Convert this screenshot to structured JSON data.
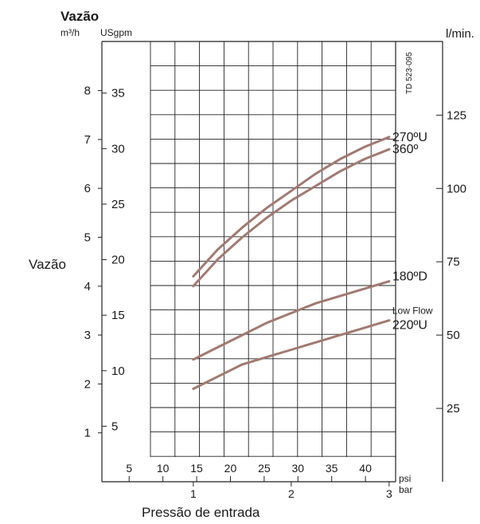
{
  "chart_data": {
    "type": "line",
    "title": "Vazão",
    "ylabel": "Vazão",
    "xlabel": "Pressão de entrada",
    "code": "TD 523-095",
    "grid": true,
    "x_unit_bar": "bar",
    "x_unit_psi": "psi",
    "y_unit_m3h": "m³/h",
    "y_unit_usgpm": "USgpm",
    "y_unit_lmin": "l/min.",
    "xlim": [
      0.0,
      3.05
    ],
    "ylim": [
      0.0,
      9.0
    ],
    "bar_ticks": [
      "1",
      "2",
      "3"
    ],
    "psi_ticks": [
      "5",
      "10",
      "15",
      "20",
      "25",
      "30",
      "35",
      "40"
    ],
    "m3h_ticks": [
      "1",
      "2",
      "3",
      "4",
      "5",
      "6",
      "7",
      "8"
    ],
    "usgpm_ticks": [
      "5",
      "10",
      "15",
      "20",
      "25",
      "30",
      "35"
    ],
    "lmin_ticks": [
      "25",
      "50",
      "75",
      "100",
      "125"
    ],
    "series_color": "#a07a72",
    "series": [
      {
        "name": "270ºU",
        "x": [
          1.0,
          1.25,
          1.5,
          1.75,
          2.0,
          2.25,
          2.5,
          2.75,
          3.0
        ],
        "y": [
          4.2,
          4.75,
          5.2,
          5.6,
          5.95,
          6.3,
          6.6,
          6.85,
          7.05
        ]
      },
      {
        "name": "360º",
        "x": [
          1.0,
          1.25,
          1.5,
          1.75,
          2.0,
          2.25,
          2.5,
          2.75,
          3.0
        ],
        "y": [
          4.0,
          4.55,
          5.0,
          5.4,
          5.75,
          6.05,
          6.35,
          6.6,
          6.8
        ]
      },
      {
        "name": "180ºD",
        "x": [
          1.0,
          1.25,
          1.5,
          1.75,
          2.0,
          2.25,
          2.5,
          2.75,
          3.0
        ],
        "y": [
          2.5,
          2.75,
          3.0,
          3.25,
          3.45,
          3.65,
          3.8,
          3.95,
          4.1
        ]
      },
      {
        "name": "220ºU",
        "subtitle": "Low Flow",
        "x": [
          1.0,
          1.25,
          1.5,
          1.75,
          2.0,
          2.25,
          2.5,
          2.75,
          3.0
        ],
        "y": [
          1.9,
          2.15,
          2.4,
          2.55,
          2.7,
          2.85,
          3.0,
          3.15,
          3.3
        ]
      }
    ]
  }
}
